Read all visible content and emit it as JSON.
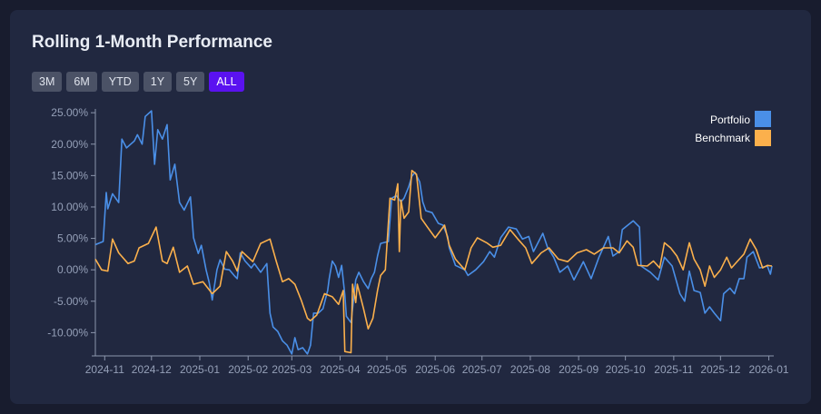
{
  "title": "Rolling 1-Month Performance",
  "range_buttons": [
    {
      "label": "3M",
      "active": false
    },
    {
      "label": "6M",
      "active": false
    },
    {
      "label": "YTD",
      "active": false
    },
    {
      "label": "1Y",
      "active": false
    },
    {
      "label": "5Y",
      "active": false
    },
    {
      "label": "ALL",
      "active": true
    }
  ],
  "colors": {
    "accent": "#5a12f0",
    "portfolio": "#4a8fe7",
    "benchmark": "#fbb04c"
  },
  "chart_data": {
    "type": "line",
    "title": "",
    "xlabel": "",
    "ylabel": "",
    "xlim": [
      "2024-10-26",
      "2026-01-03"
    ],
    "ylim": [
      -13.7,
      25.6
    ],
    "grid": false,
    "legend": "top-right",
    "x_ticks": [
      "2024-11",
      "2024-12",
      "2025-01",
      "2025-02",
      "2025-03",
      "2025-04",
      "2025-05",
      "2025-06",
      "2025-07",
      "2025-08",
      "2025-09",
      "2025-10",
      "2025-11",
      "2025-12",
      "2026-01"
    ],
    "y_ticks": [
      25,
      20,
      15,
      10,
      5,
      0,
      -5,
      -10
    ],
    "y_tick_labels": [
      "25.00%",
      "20.00%",
      "15.00%",
      "10.00%",
      "5.00%",
      "0.00%",
      "-5.00%",
      "-10.00%"
    ],
    "series": [
      {
        "name": "Portfolio",
        "color": "#4a8fe7",
        "points": [
          [
            "2024-10-26",
            4.0
          ],
          [
            "2024-10-31",
            4.5
          ],
          [
            "2024-11-02",
            12.3
          ],
          [
            "2024-11-03",
            9.7
          ],
          [
            "2024-11-06",
            12.1
          ],
          [
            "2024-11-10",
            10.7
          ],
          [
            "2024-11-12",
            20.8
          ],
          [
            "2024-11-15",
            19.4
          ],
          [
            "2024-11-20",
            20.5
          ],
          [
            "2024-11-22",
            21.5
          ],
          [
            "2024-11-25",
            20.0
          ],
          [
            "2024-11-27",
            24.4
          ],
          [
            "2024-12-01",
            25.3
          ],
          [
            "2024-12-03",
            16.8
          ],
          [
            "2024-12-05",
            22.3
          ],
          [
            "2024-12-08",
            20.8
          ],
          [
            "2024-12-11",
            23.1
          ],
          [
            "2024-12-13",
            14.3
          ],
          [
            "2024-12-16",
            16.8
          ],
          [
            "2024-12-19",
            10.7
          ],
          [
            "2024-12-22",
            9.5
          ],
          [
            "2024-12-26",
            11.6
          ],
          [
            "2024-12-28",
            5.1
          ],
          [
            "2024-12-31",
            2.6
          ],
          [
            "2025-01-02",
            3.9
          ],
          [
            "2025-01-05",
            0.0
          ],
          [
            "2025-01-07",
            -2.0
          ],
          [
            "2025-01-09",
            -4.8
          ],
          [
            "2025-01-12",
            0.0
          ],
          [
            "2025-01-14",
            1.6
          ],
          [
            "2025-01-17",
            0.1
          ],
          [
            "2025-01-20",
            0.0
          ],
          [
            "2025-01-23",
            -0.9
          ],
          [
            "2025-01-25",
            -1.4
          ],
          [
            "2025-01-27",
            2.7
          ],
          [
            "2025-01-30",
            1.4
          ],
          [
            "2025-02-03",
            0.3
          ],
          [
            "2025-02-05",
            1.0
          ],
          [
            "2025-02-09",
            -0.4
          ],
          [
            "2025-02-13",
            1.0
          ],
          [
            "2025-02-15",
            -6.9
          ],
          [
            "2025-02-17",
            -9.1
          ],
          [
            "2025-02-20",
            -9.8
          ],
          [
            "2025-02-23",
            -11.3
          ],
          [
            "2025-02-26",
            -12.0
          ],
          [
            "2025-03-01",
            -13.4
          ],
          [
            "2025-03-03",
            -10.8
          ],
          [
            "2025-03-05",
            -12.7
          ],
          [
            "2025-03-08",
            -12.4
          ],
          [
            "2025-03-11",
            -13.4
          ],
          [
            "2025-03-13",
            -12.0
          ],
          [
            "2025-03-15",
            -6.9
          ],
          [
            "2025-03-18",
            -6.9
          ],
          [
            "2025-03-21",
            -6.2
          ],
          [
            "2025-03-24",
            -3.3
          ],
          [
            "2025-03-25",
            -1.4
          ],
          [
            "2025-03-27",
            1.4
          ],
          [
            "2025-03-29",
            0.6
          ],
          [
            "2025-03-31",
            -1.2
          ],
          [
            "2025-04-02",
            0.7
          ],
          [
            "2025-04-04",
            -4.0
          ],
          [
            "2025-04-05",
            -7.4
          ],
          [
            "2025-04-08",
            -8.4
          ],
          [
            "2025-04-11",
            -1.6
          ],
          [
            "2025-04-13",
            -0.4
          ],
          [
            "2025-04-16",
            -1.9
          ],
          [
            "2025-04-19",
            -3.0
          ],
          [
            "2025-04-21",
            -1.4
          ],
          [
            "2025-04-23",
            -0.4
          ],
          [
            "2025-04-25",
            2.2
          ],
          [
            "2025-04-27",
            4.2
          ],
          [
            "2025-05-02",
            4.5
          ],
          [
            "2025-05-04",
            11.4
          ],
          [
            "2025-05-07",
            11.8
          ],
          [
            "2025-05-10",
            10.8
          ],
          [
            "2025-05-12",
            11.4
          ],
          [
            "2025-05-15",
            13.2
          ],
          [
            "2025-05-17",
            14.9
          ],
          [
            "2025-05-19",
            15.5
          ],
          [
            "2025-05-22",
            14.0
          ],
          [
            "2025-05-24",
            10.8
          ],
          [
            "2025-05-26",
            9.4
          ],
          [
            "2025-05-30",
            9.1
          ],
          [
            "2025-06-03",
            7.4
          ],
          [
            "2025-06-06",
            7.1
          ],
          [
            "2025-06-09",
            5.3
          ],
          [
            "2025-06-10",
            3.5
          ],
          [
            "2025-06-14",
            0.7
          ],
          [
            "2025-06-20",
            0.0
          ],
          [
            "2025-06-22",
            -0.9
          ],
          [
            "2025-06-27",
            0.0
          ],
          [
            "2025-07-02",
            1.3
          ],
          [
            "2025-07-06",
            2.9
          ],
          [
            "2025-07-09",
            2.0
          ],
          [
            "2025-07-13",
            5.1
          ],
          [
            "2025-07-18",
            6.8
          ],
          [
            "2025-07-23",
            6.5
          ],
          [
            "2025-07-27",
            4.9
          ],
          [
            "2025-07-31",
            5.3
          ],
          [
            "2025-08-03",
            2.9
          ],
          [
            "2025-08-09",
            5.8
          ],
          [
            "2025-08-12",
            3.6
          ],
          [
            "2025-08-16",
            2.0
          ],
          [
            "2025-08-20",
            -0.4
          ],
          [
            "2025-08-25",
            0.6
          ],
          [
            "2025-08-29",
            -1.6
          ],
          [
            "2025-09-04",
            1.3
          ],
          [
            "2025-09-09",
            -1.4
          ],
          [
            "2025-09-14",
            2.0
          ],
          [
            "2025-09-20",
            5.3
          ],
          [
            "2025-09-23",
            2.2
          ],
          [
            "2025-09-27",
            2.9
          ],
          [
            "2025-09-29",
            6.4
          ],
          [
            "2025-10-06",
            7.8
          ],
          [
            "2025-10-10",
            6.8
          ],
          [
            "2025-10-11",
            0.6
          ],
          [
            "2025-10-17",
            -0.4
          ],
          [
            "2025-10-22",
            -1.6
          ],
          [
            "2025-10-26",
            2.0
          ],
          [
            "2025-10-31",
            0.6
          ],
          [
            "2025-11-05",
            -3.8
          ],
          [
            "2025-11-08",
            -5.0
          ],
          [
            "2025-11-11",
            -0.2
          ],
          [
            "2025-11-14",
            -3.3
          ],
          [
            "2025-11-18",
            -3.6
          ],
          [
            "2025-11-21",
            -6.9
          ],
          [
            "2025-11-24",
            -5.9
          ],
          [
            "2025-11-27",
            -6.9
          ],
          [
            "2025-12-01",
            -8.1
          ],
          [
            "2025-12-03",
            -3.8
          ],
          [
            "2025-12-07",
            -2.9
          ],
          [
            "2025-12-10",
            -3.8
          ],
          [
            "2025-12-13",
            -1.4
          ],
          [
            "2025-12-16",
            -1.4
          ],
          [
            "2025-12-18",
            2.0
          ],
          [
            "2025-12-22",
            2.9
          ],
          [
            "2025-12-26",
            0.3
          ],
          [
            "2025-12-31",
            0.6
          ],
          [
            "2026-01-02",
            -0.7
          ],
          [
            "2026-01-03",
            0.6
          ]
        ]
      },
      {
        "name": "Benchmark",
        "color": "#fbb04c",
        "points": [
          [
            "2024-10-26",
            1.7
          ],
          [
            "2024-10-30",
            0.0
          ],
          [
            "2024-11-03",
            -0.2
          ],
          [
            "2024-11-06",
            4.9
          ],
          [
            "2024-11-10",
            2.7
          ],
          [
            "2024-11-16",
            1.0
          ],
          [
            "2024-11-20",
            1.4
          ],
          [
            "2024-11-23",
            3.5
          ],
          [
            "2024-11-29",
            4.2
          ],
          [
            "2024-12-04",
            6.8
          ],
          [
            "2024-12-08",
            1.4
          ],
          [
            "2024-12-11",
            1.0
          ],
          [
            "2024-12-15",
            3.6
          ],
          [
            "2024-12-19",
            -0.4
          ],
          [
            "2024-12-24",
            0.6
          ],
          [
            "2024-12-28",
            -2.3
          ],
          [
            "2025-01-03",
            -1.9
          ],
          [
            "2025-01-09",
            -3.8
          ],
          [
            "2025-01-14",
            -2.6
          ],
          [
            "2025-01-18",
            2.9
          ],
          [
            "2025-01-22",
            1.4
          ],
          [
            "2025-01-25",
            -0.2
          ],
          [
            "2025-01-28",
            2.9
          ],
          [
            "2025-02-04",
            1.3
          ],
          [
            "2025-02-09",
            4.2
          ],
          [
            "2025-02-15",
            4.9
          ],
          [
            "2025-02-19",
            1.4
          ],
          [
            "2025-02-23",
            -1.9
          ],
          [
            "2025-02-27",
            -1.4
          ],
          [
            "2025-03-03",
            -2.3
          ],
          [
            "2025-03-07",
            -4.8
          ],
          [
            "2025-03-11",
            -7.7
          ],
          [
            "2025-03-13",
            -8.1
          ],
          [
            "2025-03-17",
            -7.2
          ],
          [
            "2025-03-22",
            -3.8
          ],
          [
            "2025-03-27",
            -4.3
          ],
          [
            "2025-03-31",
            -5.5
          ],
          [
            "2025-04-03",
            -3.3
          ],
          [
            "2025-04-04",
            -13.0
          ],
          [
            "2025-04-08",
            -13.2
          ],
          [
            "2025-04-09",
            -2.3
          ],
          [
            "2025-04-11",
            -5.2
          ],
          [
            "2025-04-12",
            -2.3
          ],
          [
            "2025-04-16",
            -6.2
          ],
          [
            "2025-04-19",
            -9.4
          ],
          [
            "2025-04-22",
            -7.7
          ],
          [
            "2025-04-25",
            -3.3
          ],
          [
            "2025-04-27",
            -0.9
          ],
          [
            "2025-04-30",
            0.0
          ],
          [
            "2025-05-03",
            11.4
          ],
          [
            "2025-05-06",
            11.1
          ],
          [
            "2025-05-08",
            13.7
          ],
          [
            "2025-05-09",
            2.9
          ],
          [
            "2025-05-10",
            11.1
          ],
          [
            "2025-05-12",
            8.2
          ],
          [
            "2025-05-15",
            9.2
          ],
          [
            "2025-05-17",
            15.8
          ],
          [
            "2025-05-20",
            15.2
          ],
          [
            "2025-05-23",
            8.2
          ],
          [
            "2025-05-27",
            6.8
          ],
          [
            "2025-06-01",
            5.1
          ],
          [
            "2025-06-07",
            7.1
          ],
          [
            "2025-06-10",
            3.9
          ],
          [
            "2025-06-14",
            1.7
          ],
          [
            "2025-06-20",
            0.0
          ],
          [
            "2025-06-24",
            3.5
          ],
          [
            "2025-06-28",
            5.1
          ],
          [
            "2025-07-04",
            4.3
          ],
          [
            "2025-07-08",
            3.6
          ],
          [
            "2025-07-13",
            3.9
          ],
          [
            "2025-07-19",
            6.4
          ],
          [
            "2025-07-24",
            4.9
          ],
          [
            "2025-07-29",
            3.5
          ],
          [
            "2025-08-02",
            1.0
          ],
          [
            "2025-08-08",
            2.7
          ],
          [
            "2025-08-13",
            3.5
          ],
          [
            "2025-08-19",
            1.7
          ],
          [
            "2025-08-25",
            1.3
          ],
          [
            "2025-08-31",
            2.7
          ],
          [
            "2025-09-06",
            3.2
          ],
          [
            "2025-09-11",
            2.5
          ],
          [
            "2025-09-17",
            3.5
          ],
          [
            "2025-09-23",
            3.5
          ],
          [
            "2025-09-27",
            2.7
          ],
          [
            "2025-10-02",
            4.6
          ],
          [
            "2025-10-06",
            3.6
          ],
          [
            "2025-10-09",
            0.7
          ],
          [
            "2025-10-15",
            0.6
          ],
          [
            "2025-10-19",
            1.4
          ],
          [
            "2025-10-23",
            0.3
          ],
          [
            "2025-10-26",
            4.3
          ],
          [
            "2025-10-30",
            3.5
          ],
          [
            "2025-11-03",
            2.2
          ],
          [
            "2025-11-07",
            0.0
          ],
          [
            "2025-11-11",
            4.3
          ],
          [
            "2025-11-14",
            1.7
          ],
          [
            "2025-11-18",
            0.0
          ],
          [
            "2025-11-21",
            -2.6
          ],
          [
            "2025-11-24",
            0.6
          ],
          [
            "2025-11-27",
            -1.2
          ],
          [
            "2025-12-01",
            0.0
          ],
          [
            "2025-12-05",
            2.0
          ],
          [
            "2025-12-08",
            0.3
          ],
          [
            "2025-12-12",
            1.4
          ],
          [
            "2025-12-16",
            2.5
          ],
          [
            "2025-12-20",
            4.9
          ],
          [
            "2025-12-24",
            3.2
          ],
          [
            "2025-12-28",
            0.3
          ],
          [
            "2025-12-31",
            0.7
          ],
          [
            "2026-01-03",
            0.6
          ]
        ]
      }
    ]
  }
}
